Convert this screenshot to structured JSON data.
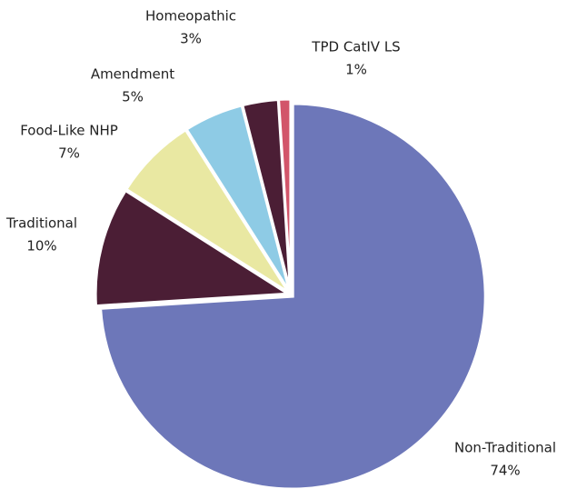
{
  "chart_data": {
    "type": "pie",
    "categories": [
      "Non-Traditional",
      "Traditional",
      "Food-Like NHP",
      "Amendment",
      "Homeopathic",
      "TPD CatIV LS"
    ],
    "values": [
      74,
      10,
      7,
      5,
      3,
      1
    ],
    "value_labels": [
      "74%",
      "10%",
      "7%",
      "5%",
      "3%",
      "1%"
    ],
    "colors": [
      "#6d77b9",
      "#4b1e35",
      "#e9e8a2",
      "#8ecbe5",
      "#4b1e35",
      "#d2556a"
    ]
  }
}
